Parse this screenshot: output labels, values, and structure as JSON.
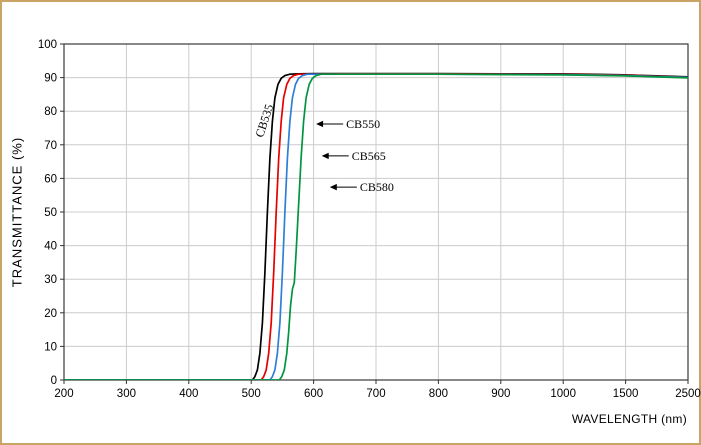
{
  "frame": {
    "border_color": "#c9a464",
    "background": "#ffffff"
  },
  "chart_data": {
    "type": "line",
    "title": "",
    "xlabel": "WAVELENGTH (nm)",
    "ylabel": "TRANSMITTANCE (%)",
    "x_ticks": [
      200,
      300,
      400,
      500,
      600,
      700,
      800,
      900,
      1000,
      1500,
      2500
    ],
    "y_ticks": [
      0,
      10,
      20,
      30,
      40,
      50,
      60,
      70,
      80,
      90,
      100
    ],
    "ylim": [
      0,
      100
    ],
    "x_scale_note": "equal spacing per tick division (100 nm per division up to 1000, then 500, then 1000)",
    "grid": true,
    "grid_color": "#cccccc",
    "axis_color": "#3a3a3a",
    "series": [
      {
        "name": "CB535",
        "color": "#000000",
        "points": [
          [
            200,
            0
          ],
          [
            490,
            0
          ],
          [
            502,
            0
          ],
          [
            506,
            1
          ],
          [
            510,
            3
          ],
          [
            514,
            8
          ],
          [
            518,
            17
          ],
          [
            522,
            32
          ],
          [
            526,
            50
          ],
          [
            530,
            66
          ],
          [
            534,
            77
          ],
          [
            538,
            84
          ],
          [
            543,
            88
          ],
          [
            548,
            89.8
          ],
          [
            554,
            90.6
          ],
          [
            562,
            91
          ],
          [
            575,
            91.1
          ],
          [
            600,
            91.2
          ],
          [
            650,
            91.2
          ],
          [
            700,
            91.2
          ],
          [
            800,
            91.2
          ],
          [
            900,
            91.1
          ],
          [
            1000,
            91.1
          ],
          [
            1200,
            91
          ],
          [
            1500,
            90.8
          ],
          [
            2000,
            90.5
          ],
          [
            2500,
            90.2
          ]
        ]
      },
      {
        "name": "CB550",
        "color": "#e60000",
        "points": [
          [
            200,
            0
          ],
          [
            504,
            0
          ],
          [
            516,
            0
          ],
          [
            520,
            1
          ],
          [
            524,
            3
          ],
          [
            528,
            8
          ],
          [
            532,
            17
          ],
          [
            536,
            32
          ],
          [
            540,
            50
          ],
          [
            544,
            66
          ],
          [
            548,
            77
          ],
          [
            552,
            84
          ],
          [
            557,
            88
          ],
          [
            562,
            89.8
          ],
          [
            568,
            90.6
          ],
          [
            576,
            91
          ],
          [
            590,
            91
          ],
          [
            650,
            91.1
          ],
          [
            800,
            91.1
          ],
          [
            1000,
            91
          ],
          [
            1500,
            90.7
          ],
          [
            2000,
            90.4
          ],
          [
            2500,
            90.1
          ]
        ]
      },
      {
        "name": "CB565",
        "color": "#2f7ed8",
        "points": [
          [
            200,
            0
          ],
          [
            518,
            0
          ],
          [
            530,
            0
          ],
          [
            534,
            1
          ],
          [
            538,
            3
          ],
          [
            542,
            8
          ],
          [
            546,
            17
          ],
          [
            550,
            32
          ],
          [
            554,
            50
          ],
          [
            558,
            66
          ],
          [
            562,
            77
          ],
          [
            566,
            84
          ],
          [
            571,
            88
          ],
          [
            576,
            89.8
          ],
          [
            582,
            90.6
          ],
          [
            590,
            91
          ],
          [
            650,
            91
          ],
          [
            800,
            91
          ],
          [
            1000,
            90.9
          ],
          [
            1500,
            90.6
          ],
          [
            2000,
            90.3
          ],
          [
            2500,
            90.1
          ]
        ]
      },
      {
        "name": "CB580",
        "color": "#009640",
        "points": [
          [
            200,
            0
          ],
          [
            533,
            0
          ],
          [
            545,
            0
          ],
          [
            549,
            1
          ],
          [
            553,
            3
          ],
          [
            557,
            8
          ],
          [
            560,
            14
          ],
          [
            563,
            22
          ],
          [
            566,
            27
          ],
          [
            569,
            29
          ],
          [
            572,
            38
          ],
          [
            576,
            52
          ],
          [
            580,
            66
          ],
          [
            584,
            77
          ],
          [
            588,
            84
          ],
          [
            593,
            88
          ],
          [
            598,
            89.8
          ],
          [
            604,
            90.6
          ],
          [
            612,
            91
          ],
          [
            650,
            91
          ],
          [
            800,
            91
          ],
          [
            1000,
            90.8
          ],
          [
            1500,
            90.5
          ],
          [
            2000,
            90.2
          ],
          [
            2500,
            89.9
          ]
        ]
      }
    ],
    "annotations": [
      {
        "label": "CB535",
        "type": "rotated",
        "at": [
          527,
          76.8
        ],
        "rotation": -72
      },
      {
        "label": "CB550",
        "type": "arrow",
        "tip": [
          604,
          76.2
        ]
      },
      {
        "label": "CB565",
        "type": "arrow",
        "tip": [
          613,
          66.7
        ]
      },
      {
        "label": "CB580",
        "type": "arrow",
        "tip": [
          626,
          57.4
        ]
      }
    ],
    "legend_position": "none"
  }
}
